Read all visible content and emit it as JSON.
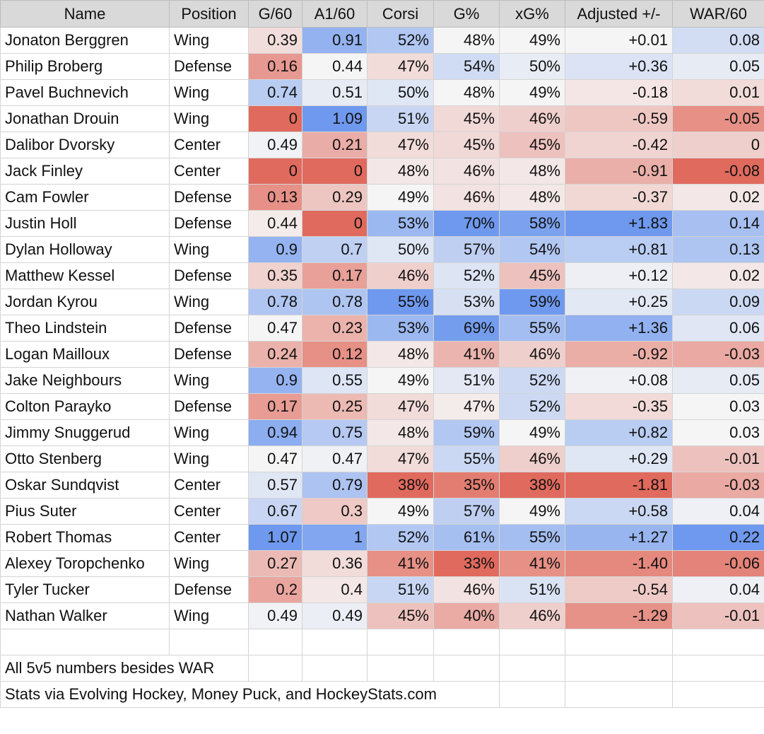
{
  "columns": [
    "Name",
    "Position",
    "G/60",
    "A1/60",
    "Corsi",
    "G%",
    "xG%",
    "Adjusted +/-",
    "WAR/60"
  ],
  "rows": [
    {
      "name": "Jonaton Berggren",
      "position": "Wing",
      "g60": "0.39",
      "a160": "0.91",
      "corsi": "52%",
      "gpct": "48%",
      "xgpct": "49%",
      "adj": "+0.01",
      "war60": "0.08"
    },
    {
      "name": "Philip Broberg",
      "position": "Defense",
      "g60": "0.16",
      "a160": "0.44",
      "corsi": "47%",
      "gpct": "54%",
      "xgpct": "50%",
      "adj": "+0.36",
      "war60": "0.05"
    },
    {
      "name": "Pavel Buchnevich",
      "position": "Wing",
      "g60": "0.74",
      "a160": "0.51",
      "corsi": "50%",
      "gpct": "48%",
      "xgpct": "49%",
      "adj": "-0.18",
      "war60": "0.01"
    },
    {
      "name": "Jonathan Drouin",
      "position": "Wing",
      "g60": "0",
      "a160": "1.09",
      "corsi": "51%",
      "gpct": "45%",
      "xgpct": "46%",
      "adj": "-0.59",
      "war60": "-0.05"
    },
    {
      "name": "Dalibor Dvorsky",
      "position": "Center",
      "g60": "0.49",
      "a160": "0.21",
      "corsi": "47%",
      "gpct": "45%",
      "xgpct": "45%",
      "adj": "-0.42",
      "war60": "0"
    },
    {
      "name": "Jack Finley",
      "position": "Center",
      "g60": "0",
      "a160": "0",
      "corsi": "48%",
      "gpct": "46%",
      "xgpct": "48%",
      "adj": "-0.91",
      "war60": "-0.08"
    },
    {
      "name": "Cam Fowler",
      "position": "Defense",
      "g60": "0.13",
      "a160": "0.29",
      "corsi": "49%",
      "gpct": "46%",
      "xgpct": "48%",
      "adj": "-0.37",
      "war60": "0.02"
    },
    {
      "name": "Justin Holl",
      "position": "Defense",
      "g60": "0.44",
      "a160": "0",
      "corsi": "53%",
      "gpct": "70%",
      "xgpct": "58%",
      "adj": "+1.83",
      "war60": "0.14"
    },
    {
      "name": "Dylan Holloway",
      "position": "Wing",
      "g60": "0.9",
      "a160": "0.7",
      "corsi": "50%",
      "gpct": "57%",
      "xgpct": "54%",
      "adj": "+0.81",
      "war60": "0.13"
    },
    {
      "name": "Matthew Kessel",
      "position": "Defense",
      "g60": "0.35",
      "a160": "0.17",
      "corsi": "46%",
      "gpct": "52%",
      "xgpct": "45%",
      "adj": "+0.12",
      "war60": "0.02"
    },
    {
      "name": "Jordan Kyrou",
      "position": "Wing",
      "g60": "0.78",
      "a160": "0.78",
      "corsi": "55%",
      "gpct": "53%",
      "xgpct": "59%",
      "adj": "+0.25",
      "war60": "0.09"
    },
    {
      "name": "Theo Lindstein",
      "position": "Defense",
      "g60": "0.47",
      "a160": "0.23",
      "corsi": "53%",
      "gpct": "69%",
      "xgpct": "55%",
      "adj": "+1.36",
      "war60": "0.06"
    },
    {
      "name": "Logan Mailloux",
      "position": "Defense",
      "g60": "0.24",
      "a160": "0.12",
      "corsi": "48%",
      "gpct": "41%",
      "xgpct": "46%",
      "adj": "-0.92",
      "war60": "-0.03"
    },
    {
      "name": "Jake Neighbours",
      "position": "Wing",
      "g60": "0.9",
      "a160": "0.55",
      "corsi": "49%",
      "gpct": "51%",
      "xgpct": "52%",
      "adj": "+0.08",
      "war60": "0.05"
    },
    {
      "name": "Colton Parayko",
      "position": "Defense",
      "g60": "0.17",
      "a160": "0.25",
      "corsi": "47%",
      "gpct": "47%",
      "xgpct": "52%",
      "adj": "-0.35",
      "war60": "0.03"
    },
    {
      "name": "Jimmy Snuggerud",
      "position": "Wing",
      "g60": "0.94",
      "a160": "0.75",
      "corsi": "48%",
      "gpct": "59%",
      "xgpct": "49%",
      "adj": "+0.82",
      "war60": "0.03"
    },
    {
      "name": "Otto Stenberg",
      "position": "Wing",
      "g60": "0.47",
      "a160": "0.47",
      "corsi": "47%",
      "gpct": "55%",
      "xgpct": "46%",
      "adj": "+0.29",
      "war60": "-0.01"
    },
    {
      "name": "Oskar Sundqvist",
      "position": "Center",
      "g60": "0.57",
      "a160": "0.79",
      "corsi": "38%",
      "gpct": "35%",
      "xgpct": "38%",
      "adj": "-1.81",
      "war60": "-0.03"
    },
    {
      "name": "Pius Suter",
      "position": "Center",
      "g60": "0.67",
      "a160": "0.3",
      "corsi": "49%",
      "gpct": "57%",
      "xgpct": "49%",
      "adj": "+0.58",
      "war60": "0.04"
    },
    {
      "name": "Robert Thomas",
      "position": "Center",
      "g60": "1.07",
      "a160": "1",
      "corsi": "52%",
      "gpct": "61%",
      "xgpct": "55%",
      "adj": "+1.27",
      "war60": "0.22"
    },
    {
      "name": "Alexey Toropchenko",
      "position": "Wing",
      "g60": "0.27",
      "a160": "0.36",
      "corsi": "41%",
      "gpct": "33%",
      "xgpct": "41%",
      "adj": "-1.40",
      "war60": "-0.06"
    },
    {
      "name": "Tyler Tucker",
      "position": "Defense",
      "g60": "0.2",
      "a160": "0.4",
      "corsi": "51%",
      "gpct": "46%",
      "xgpct": "51%",
      "adj": "-0.54",
      "war60": "0.04"
    },
    {
      "name": "Nathan Walker",
      "position": "Wing",
      "g60": "0.49",
      "a160": "0.49",
      "corsi": "45%",
      "gpct": "40%",
      "xgpct": "46%",
      "adj": "-1.29",
      "war60": "-0.01"
    }
  ],
  "footnotes": [
    "All 5v5 numbers besides WAR",
    "Stats via Evolving Hockey, Money Puck, and HockeyStats.com"
  ],
  "colors": {
    "header_bg": "#d9d9d9",
    "gridline": "#d4d4d4",
    "scale_low": "#e06a5d",
    "scale_mid": "#f5f5f5",
    "scale_high": "#6f99ee"
  }
}
